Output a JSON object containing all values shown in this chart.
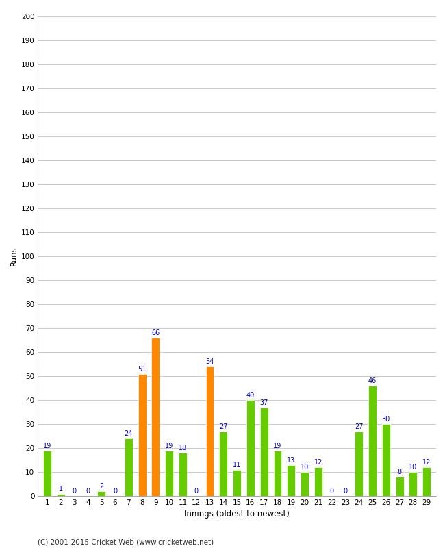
{
  "xlabel": "Innings (oldest to newest)",
  "ylabel": "Runs",
  "categories": [
    1,
    2,
    3,
    4,
    5,
    6,
    7,
    8,
    9,
    10,
    11,
    12,
    13,
    14,
    15,
    16,
    17,
    18,
    19,
    20,
    21,
    22,
    23,
    24,
    25,
    26,
    27,
    28,
    29
  ],
  "values": [
    19,
    1,
    0,
    0,
    2,
    0,
    24,
    51,
    66,
    19,
    18,
    0,
    54,
    27,
    11,
    40,
    37,
    19,
    13,
    10,
    12,
    0,
    0,
    27,
    46,
    30,
    8,
    10,
    12
  ],
  "colors": [
    "#66cc00",
    "#66cc00",
    "#66cc00",
    "#66cc00",
    "#66cc00",
    "#66cc00",
    "#66cc00",
    "#ff8800",
    "#ff8800",
    "#66cc00",
    "#66cc00",
    "#66cc00",
    "#ff8800",
    "#66cc00",
    "#66cc00",
    "#66cc00",
    "#66cc00",
    "#66cc00",
    "#66cc00",
    "#66cc00",
    "#66cc00",
    "#66cc00",
    "#66cc00",
    "#66cc00",
    "#66cc00",
    "#66cc00",
    "#66cc00",
    "#66cc00",
    "#66cc00"
  ],
  "ylim": [
    0,
    200
  ],
  "yticks": [
    0,
    10,
    20,
    30,
    40,
    50,
    60,
    70,
    80,
    90,
    100,
    110,
    120,
    130,
    140,
    150,
    160,
    170,
    180,
    190,
    200
  ],
  "label_color": "#0000cc",
  "background_color": "#ffffff",
  "grid_color": "#cccccc",
  "footer": "(C) 2001-2015 Cricket Web (www.cricketweb.net)",
  "bar_width": 0.6
}
